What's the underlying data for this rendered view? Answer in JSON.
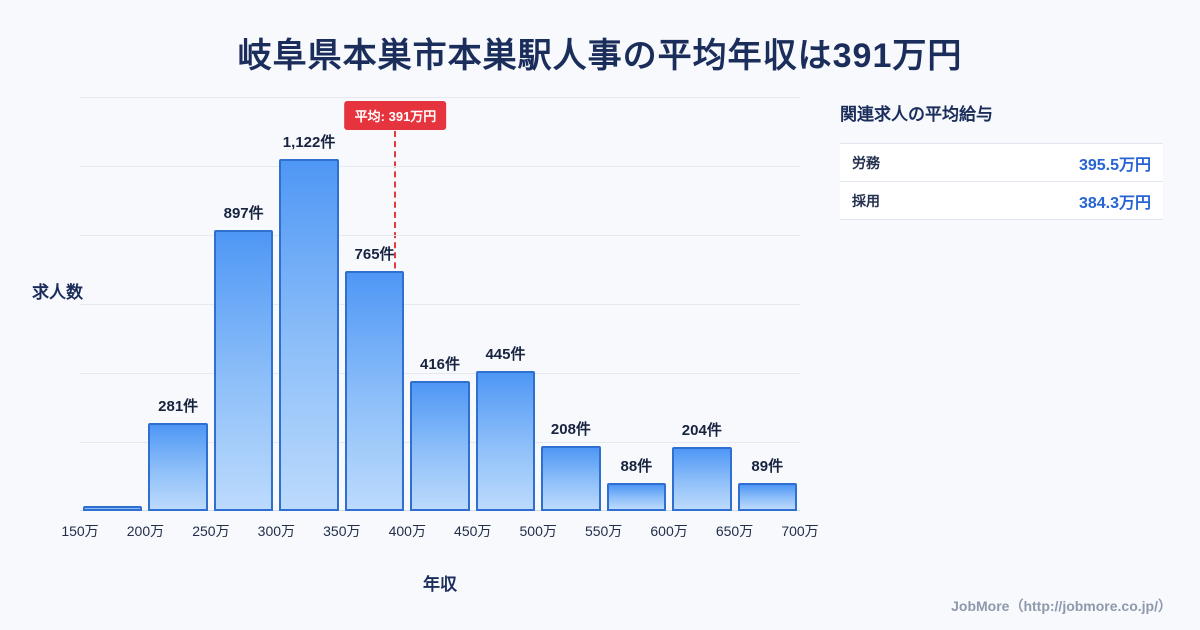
{
  "title": "岐阜県本巣市本巣駅人事の平均年収は391万円",
  "chart_data": {
    "type": "bar",
    "title": "岐阜県本巣市本巣駅人事の平均年収は391万円",
    "xlabel": "年収",
    "ylabel": "求人数",
    "x_ticks": [
      "150万",
      "200万",
      "250万",
      "300万",
      "350万",
      "400万",
      "450万",
      "500万",
      "550万",
      "600万",
      "650万",
      "700万"
    ],
    "x_range": [
      150,
      700
    ],
    "values": [
      15,
      281,
      897,
      1122,
      765,
      416,
      445,
      208,
      88,
      204,
      89
    ],
    "bar_labels": [
      "",
      "281件",
      "897件",
      "1,122件",
      "765件",
      "416件",
      "445件",
      "208件",
      "88件",
      "204件",
      "89件"
    ],
    "ylim": [
      0,
      1320
    ],
    "grid": true,
    "average": {
      "value": 391,
      "label": "平均: 391万円",
      "line_color": "#e23b3b"
    },
    "colors": {
      "bar_fill_top": "#4f97f5",
      "bar_fill_bottom": "#bcdafc",
      "bar_border": "#2e6fd0",
      "title_text": "#1b2d5b",
      "background": "#f7f9fd"
    }
  },
  "side_panel": {
    "title": "関連求人の平均給与",
    "rows": [
      {
        "label": "労務",
        "value": "395.5万円"
      },
      {
        "label": "採用",
        "value": "384.3万円"
      }
    ]
  },
  "footer": {
    "credit": "JobMore（http://jobmore.co.jp/）"
  }
}
